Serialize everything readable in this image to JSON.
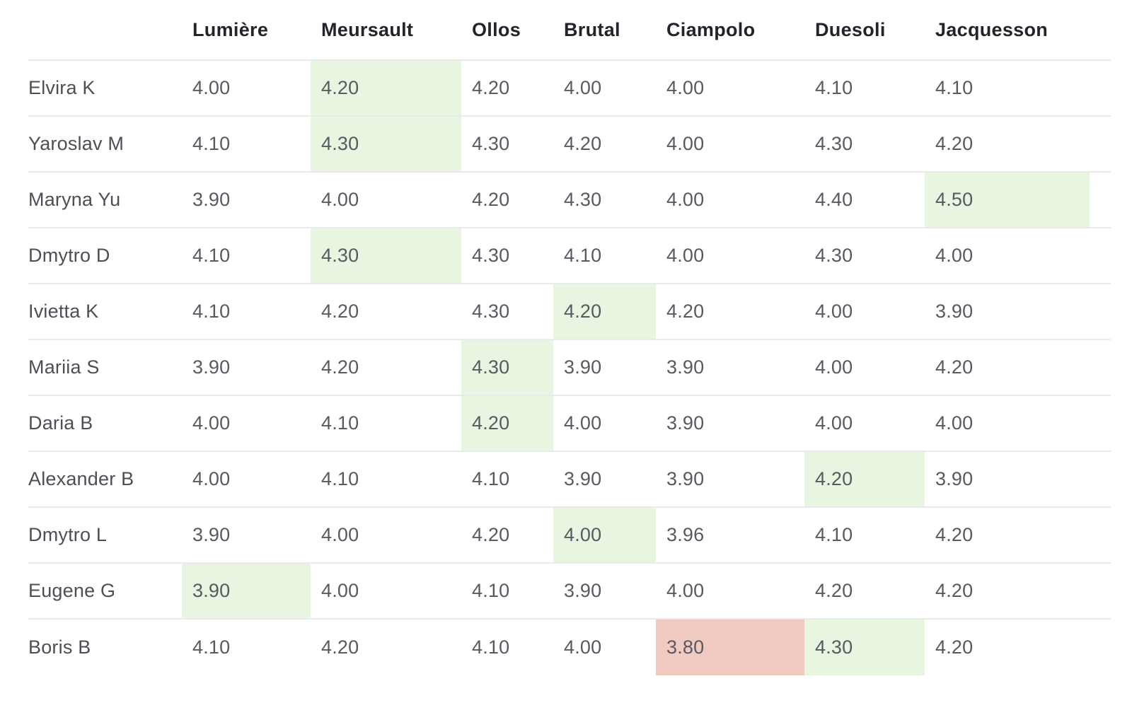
{
  "table": {
    "columns": [
      "",
      "Lumière",
      "Meursault",
      "Ollos",
      "Brutal",
      "Ciampolo",
      "Duesoli",
      "Jacquesson"
    ],
    "rows": [
      {
        "name": "Elvira K",
        "values": [
          "4.00",
          "4.20",
          "4.20",
          "4.00",
          "4.00",
          "4.10",
          "4.10"
        ],
        "highlight": [
          null,
          "best",
          null,
          null,
          null,
          null,
          null
        ]
      },
      {
        "name": "Yaroslav M",
        "values": [
          "4.10",
          "4.30",
          "4.30",
          "4.20",
          "4.00",
          "4.30",
          "4.20"
        ],
        "highlight": [
          null,
          "best",
          null,
          null,
          null,
          null,
          null
        ]
      },
      {
        "name": "Maryna Yu",
        "values": [
          "3.90",
          "4.00",
          "4.20",
          "4.30",
          "4.00",
          "4.40",
          "4.50"
        ],
        "highlight": [
          null,
          null,
          null,
          null,
          null,
          null,
          "best"
        ]
      },
      {
        "name": "Dmytro D",
        "values": [
          "4.10",
          "4.30",
          "4.30",
          "4.10",
          "4.00",
          "4.30",
          "4.00"
        ],
        "highlight": [
          null,
          "best",
          null,
          null,
          null,
          null,
          null
        ]
      },
      {
        "name": "Ivietta K",
        "values": [
          "4.10",
          "4.20",
          "4.30",
          "4.20",
          "4.20",
          "4.00",
          "3.90"
        ],
        "highlight": [
          null,
          null,
          null,
          "best",
          null,
          null,
          null
        ]
      },
      {
        "name": "Mariia S",
        "values": [
          "3.90",
          "4.20",
          "4.30",
          "3.90",
          "3.90",
          "4.00",
          "4.20"
        ],
        "highlight": [
          null,
          null,
          "best",
          null,
          null,
          null,
          null
        ]
      },
      {
        "name": "Daria B",
        "values": [
          "4.00",
          "4.10",
          "4.20",
          "4.00",
          "3.90",
          "4.00",
          "4.00"
        ],
        "highlight": [
          null,
          null,
          "best",
          null,
          null,
          null,
          null
        ]
      },
      {
        "name": "Alexander B",
        "values": [
          "4.00",
          "4.10",
          "4.10",
          "3.90",
          "3.90",
          "4.20",
          "3.90"
        ],
        "highlight": [
          null,
          null,
          null,
          null,
          null,
          "best",
          null
        ]
      },
      {
        "name": "Dmytro L",
        "values": [
          "3.90",
          "4.00",
          "4.20",
          "4.00",
          "3.96",
          "4.10",
          "4.20"
        ],
        "highlight": [
          null,
          null,
          null,
          "best",
          null,
          null,
          null
        ]
      },
      {
        "name": "Eugene G",
        "values": [
          "3.90",
          "4.00",
          "4.10",
          "3.90",
          "4.00",
          "4.20",
          "4.20"
        ],
        "highlight": [
          "best",
          null,
          null,
          null,
          null,
          null,
          null
        ]
      },
      {
        "name": "Boris B",
        "values": [
          "4.10",
          "4.20",
          "4.10",
          "4.00",
          "3.80",
          "4.30",
          "4.20"
        ],
        "highlight": [
          null,
          null,
          null,
          null,
          "worst",
          "best",
          null
        ]
      }
    ]
  },
  "colors": {
    "best": "#e8f6e1",
    "worst": "#f1cac1",
    "divider": "#e9eaec",
    "header_text": "#22242b",
    "cell_text": "#585a62"
  }
}
